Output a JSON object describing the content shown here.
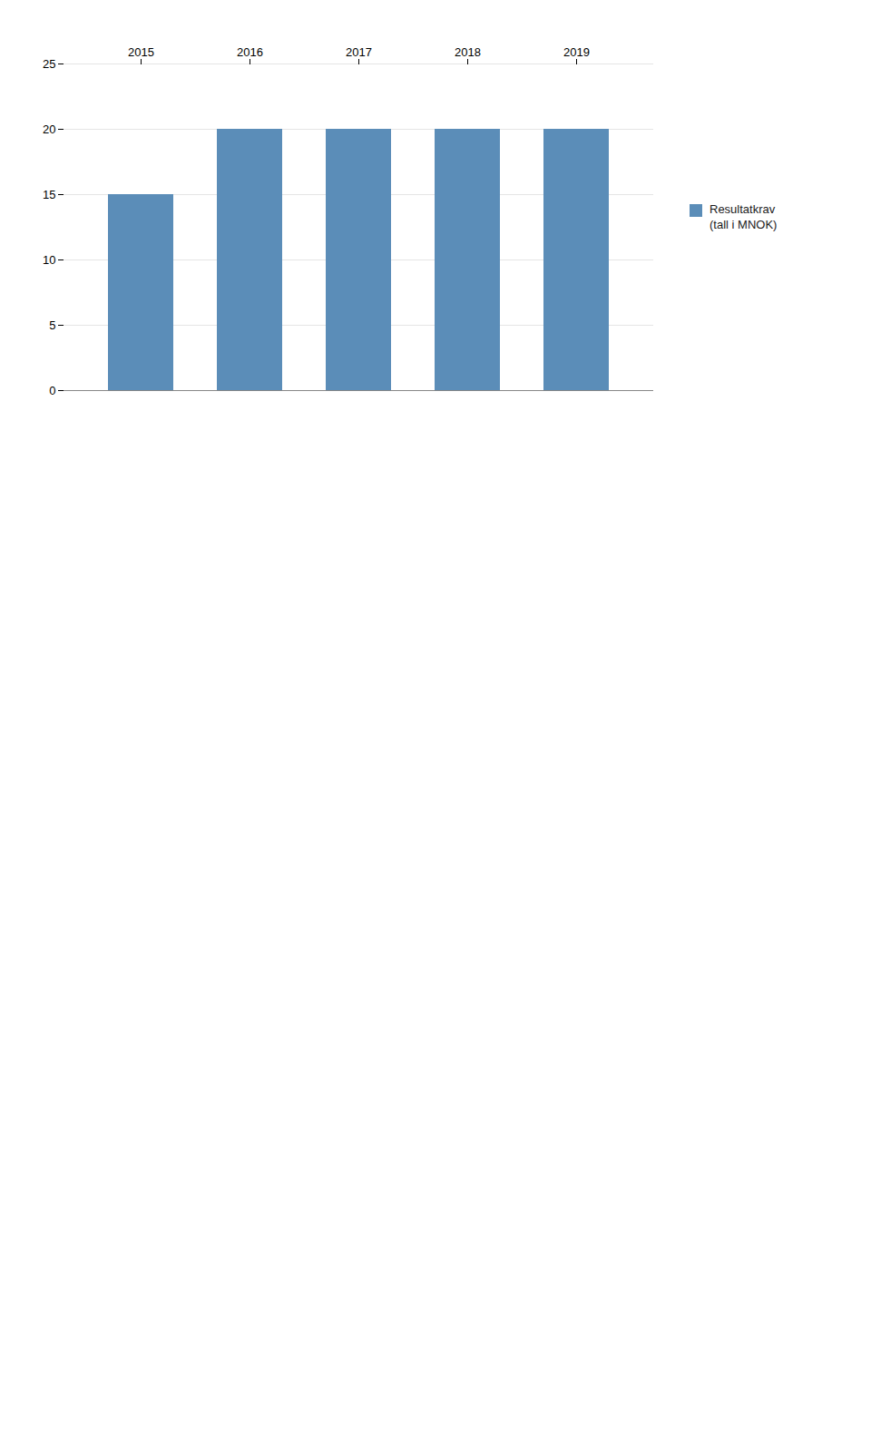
{
  "chart_data": {
    "type": "bar",
    "categories": [
      "2015",
      "2016",
      "2017",
      "2018",
      "2019"
    ],
    "series": [
      {
        "name": "Resultatkrav\n(tall i MNOK)",
        "color": "#5b8db8",
        "values": [
          15,
          20,
          20,
          20,
          20
        ]
      }
    ],
    "ylim": [
      0,
      25
    ],
    "yticks": [
      0,
      5,
      10,
      15,
      20,
      25
    ],
    "grid": true,
    "legend": "right"
  }
}
